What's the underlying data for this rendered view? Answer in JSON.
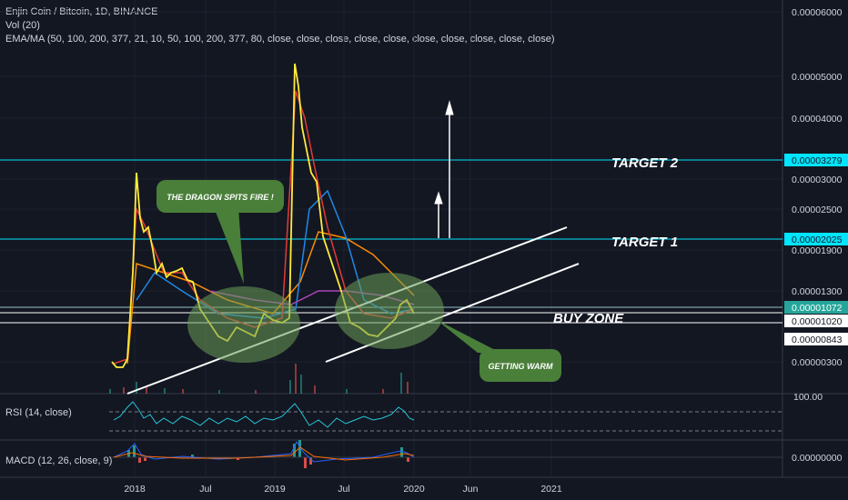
{
  "header": {
    "symbol": "Enjin Coin / Bitcoin, 1D, BINANCE",
    "volume": "Vol (20)",
    "ema_ma": "EMA/MA (50, 100, 200, 377, 21, 10, 50, 100, 200, 377, 80, close, close, close, close, close, close, close, close, close, close)"
  },
  "rsi": {
    "label": "RSI (14, close)",
    "scale": "100.00"
  },
  "macd": {
    "label": "MACD (12, 26, close, 9)",
    "scale": "0.00000000"
  },
  "annotations": {
    "target2": "TARGET 2",
    "target1": "TARGET 1",
    "buy_zone": "BUY ZONE",
    "dragon_bubble": "THE DRAGON SPITS FIRE !",
    "warm_bubble": "GETTING WARM"
  },
  "colors": {
    "background": "#131722",
    "target_line": "#00e5ff",
    "bubble_fill": "#4a7f3a",
    "price_line": "#ffeb3b",
    "ma_red": "#e53935",
    "ma_blue": "#1e88e5",
    "ma_orange": "#fb8c00",
    "ma_purple": "#ab47bc",
    "rsi_line": "#26c6da"
  },
  "chart_data": {
    "type": "line",
    "x_ticks": [
      "2018",
      "Jul",
      "2019",
      "Jul",
      "2020",
      "Jun",
      "2021"
    ],
    "y_ticks": [
      "0.00006000",
      "0.00005000",
      "0.00004000",
      "0.00003000",
      "0.00002500",
      "0.00001900",
      "0.00001300",
      "0.00001020",
      "0.00000843",
      "0.00000300"
    ],
    "y_ticks_labels": [
      "0.00006000",
      "0.00005000",
      "0.00004000",
      "0.00003000",
      "0.00002500",
      "0.00001900",
      "0.00001300",
      "0.00000300"
    ],
    "price_tags": [
      {
        "value": "0.00003279",
        "role": "target2"
      },
      {
        "value": "0.00002025",
        "role": "target1"
      },
      {
        "value": "0.00001072",
        "role": "current"
      },
      {
        "value": "0.00001020",
        "role": "buy_zone_top"
      },
      {
        "value": "0.00000843",
        "role": "buy_zone_bottom"
      }
    ],
    "series": [
      {
        "values": [
          4.5e-06,
          3e-06,
          3.2e-06,
          3e-05,
          2.2e-05,
          1.6e-05,
          1.5e-05,
          1.2e-05,
          9e-06,
          7e-06,
          7e-06,
          8e-06,
          6e-06,
          6.5e-06,
          8.5e-06,
          8e-06,
          6e-05,
          4e-05,
          2.8e-05,
          1.8e-05,
          1.1e-05,
          9e-06,
          8e-06,
          8.5e-06,
          9.5e-06,
          1.1e-05,
          9e-06
        ]
      }
    ]
  }
}
